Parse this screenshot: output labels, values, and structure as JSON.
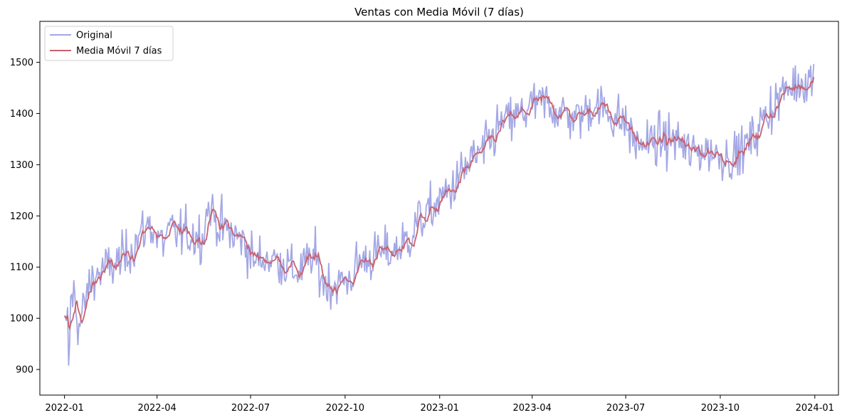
{
  "chart_data": {
    "type": "line",
    "title": "Ventas con Media Móvil (7 días)",
    "xlabel": "",
    "ylabel": "",
    "xlim": [
      "2021-12-08",
      "2024-01-24"
    ],
    "ylim": [
      850,
      1580
    ],
    "grid": false,
    "legend_position": "top-left",
    "x_ticks": [
      "2022-01",
      "2022-04",
      "2022-07",
      "2022-10",
      "2023-01",
      "2023-04",
      "2023-07",
      "2023-10",
      "2024-01"
    ],
    "y_ticks": [
      900,
      1000,
      1100,
      1200,
      1300,
      1400,
      1500
    ],
    "series": [
      {
        "name": "Original",
        "color": "#a4a8e5",
        "noise": 45,
        "anchors": [
          [
            "2022-01-01",
            1005
          ],
          [
            "2022-01-04",
            990
          ],
          [
            "2022-01-05",
            885
          ],
          [
            "2022-01-07",
            1030
          ],
          [
            "2022-01-10",
            1050
          ],
          [
            "2022-01-15",
            980
          ],
          [
            "2022-01-22",
            1040
          ],
          [
            "2022-01-28",
            1080
          ],
          [
            "2022-02-05",
            1090
          ],
          [
            "2022-02-15",
            1100
          ],
          [
            "2022-03-01",
            1120
          ],
          [
            "2022-03-15",
            1160
          ],
          [
            "2022-03-25",
            1185
          ],
          [
            "2022-04-05",
            1145
          ],
          [
            "2022-04-15",
            1170
          ],
          [
            "2022-04-25",
            1165
          ],
          [
            "2022-05-15",
            1160
          ],
          [
            "2022-05-21",
            1220
          ],
          [
            "2022-06-01",
            1180
          ],
          [
            "2022-06-15",
            1160
          ],
          [
            "2022-06-25",
            1150
          ],
          [
            "2022-07-05",
            1110
          ],
          [
            "2022-07-15",
            1120
          ],
          [
            "2022-08-01",
            1110
          ],
          [
            "2022-08-15",
            1090
          ],
          [
            "2022-09-01",
            1120
          ],
          [
            "2022-09-10",
            1070
          ],
          [
            "2022-09-20",
            1065
          ],
          [
            "2022-10-05",
            1075
          ],
          [
            "2022-10-15",
            1110
          ],
          [
            "2022-11-01",
            1125
          ],
          [
            "2022-11-15",
            1130
          ],
          [
            "2022-12-01",
            1150
          ],
          [
            "2022-12-10",
            1190
          ],
          [
            "2022-12-20",
            1200
          ],
          [
            "2023-01-01",
            1230
          ],
          [
            "2023-01-15",
            1260
          ],
          [
            "2023-02-01",
            1310
          ],
          [
            "2023-02-15",
            1330
          ],
          [
            "2023-03-01",
            1380
          ],
          [
            "2023-03-15",
            1390
          ],
          [
            "2023-04-01",
            1415
          ],
          [
            "2023-04-15",
            1420
          ],
          [
            "2023-05-01",
            1400
          ],
          [
            "2023-05-15",
            1390
          ],
          [
            "2023-06-01",
            1420
          ],
          [
            "2023-06-15",
            1400
          ],
          [
            "2023-07-01",
            1380
          ],
          [
            "2023-07-10",
            1340
          ],
          [
            "2023-08-01",
            1345
          ],
          [
            "2023-08-20",
            1350
          ],
          [
            "2023-09-01",
            1320
          ],
          [
            "2023-09-15",
            1330
          ],
          [
            "2023-10-01",
            1320
          ],
          [
            "2023-10-15",
            1315
          ],
          [
            "2023-11-01",
            1350
          ],
          [
            "2023-11-15",
            1400
          ],
          [
            "2023-12-01",
            1440
          ],
          [
            "2023-12-15",
            1460
          ],
          [
            "2023-12-31",
            1470
          ]
        ]
      },
      {
        "name": "Media Móvil 7 días",
        "color": "#c9616d",
        "window": 7,
        "source": "Original"
      }
    ]
  }
}
